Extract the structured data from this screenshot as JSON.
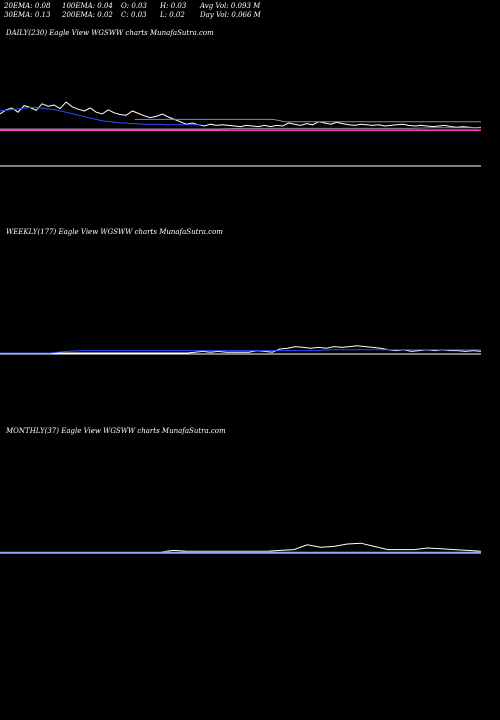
{
  "header": {
    "row1": [
      {
        "k": "20ema",
        "text": "20EMA: 0.08"
      },
      {
        "k": "100ema",
        "text": "100EMA: 0.04"
      },
      {
        "k": "open",
        "text": "O: 0.03"
      },
      {
        "k": "high",
        "text": "H: 0.03"
      },
      {
        "k": "avgvol",
        "text": "Avg Vol: 0.093  M"
      }
    ],
    "row2": [
      {
        "k": "30ema",
        "text": "30EMA: 0.13"
      },
      {
        "k": "200ema",
        "text": "200EMA: 0.02"
      },
      {
        "k": "close",
        "text": "C: 0.03"
      },
      {
        "k": "low",
        "text": "L: 0.02"
      },
      {
        "k": "dayvol",
        "text": "Day Vol: 0.066  M"
      }
    ]
  },
  "panels": {
    "daily": "DAILY(230) Eagle  View  WGSWW charts MunafaSutra.com",
    "weekly": "WEEKLY(177) Eagle  View  WGSWW charts MunafaSutra.com",
    "monthly": "MONTHLY(37) Eagle  View  WGSWW charts MunafaSutra.com"
  },
  "colors": {
    "bg": "#000000",
    "price": "#ffffff",
    "ema_blue": "#2b4bff",
    "ema_gray": "#8a8a8a",
    "ema_magenta": "#ff3bd6",
    "baseline": "#ffffff"
  },
  "chart_data": [
    {
      "type": "line",
      "series": [
        {
          "role": "price",
          "values": [
            0.085,
            0.092,
            0.095,
            0.088,
            0.099,
            0.096,
            0.091,
            0.102,
            0.098,
            0.1,
            0.094,
            0.105,
            0.097,
            0.093,
            0.09,
            0.095,
            0.088,
            0.085,
            0.092,
            0.087,
            0.084,
            0.083,
            0.09,
            0.086,
            0.082,
            0.079,
            0.081,
            0.085,
            0.08,
            0.076,
            0.072,
            0.068,
            0.07,
            0.067,
            0.065,
            0.068,
            0.066,
            0.067,
            0.066,
            0.065,
            0.064,
            0.066,
            0.065,
            0.064,
            0.066,
            0.064,
            0.066,
            0.065,
            0.07,
            0.068,
            0.066,
            0.069,
            0.067,
            0.072,
            0.07,
            0.068,
            0.071,
            0.069,
            0.067,
            0.066,
            0.068,
            0.067,
            0.066,
            0.067,
            0.065,
            0.066,
            0.067,
            0.068,
            0.066,
            0.065,
            0.066,
            0.065,
            0.064,
            0.065,
            0.066,
            0.064,
            0.063,
            0.064,
            0.063,
            0.062,
            0.063
          ]
        },
        {
          "role": "ema20",
          "values": [
            0.09,
            0.091,
            0.092,
            0.093,
            0.094,
            0.095,
            0.096,
            0.096,
            0.095,
            0.094,
            0.093,
            0.092,
            0.09,
            0.088,
            0.086,
            0.084,
            0.082,
            0.08,
            0.078,
            0.076,
            0.074,
            0.073,
            0.072,
            0.071,
            0.07,
            0.07,
            0.069,
            0.069,
            0.068,
            0.068,
            0.068,
            0.068,
            0.068,
            0.067,
            0.067,
            0.067,
            0.067,
            0.067,
            0.067,
            0.067,
            0.067
          ]
        },
        {
          "role": "ema30",
          "values": [
            0.076,
            0.076,
            0.076,
            0.076,
            0.076,
            0.076,
            0.076,
            0.076,
            0.076,
            0.076,
            0.076,
            0.076,
            0.076,
            0.072,
            0.072,
            0.072,
            0.072,
            0.072,
            0.072,
            0.072,
            0.072,
            0.072,
            0.072,
            0.072,
            0.072,
            0.072,
            0.072,
            0.072,
            0.072,
            0.072,
            0.072
          ]
        },
        {
          "role": "ema100",
          "values": [
            0.06,
            0.06,
            0.06,
            0.06,
            0.06,
            0.06,
            0.06,
            0.06,
            0.06,
            0.06,
            0.061,
            0.061,
            0.061,
            0.061,
            0.061,
            0.061,
            0.061,
            0.061,
            0.062,
            0.062,
            0.062
          ]
        },
        {
          "role": "ema200",
          "values": [
            0.058,
            0.058,
            0.058,
            0.058,
            0.058,
            0.058,
            0.058,
            0.058,
            0.058,
            0.058,
            0.058,
            0.058,
            0.058,
            0.058,
            0.058,
            0.058,
            0.058,
            0.058,
            0.058,
            0.058,
            0.058
          ]
        }
      ]
    },
    {
      "type": "line",
      "series": [
        {
          "role": "price",
          "values": [
            0,
            0,
            0,
            0,
            0,
            0,
            0,
            0,
            0,
            0,
            0,
            0,
            0,
            0,
            0,
            0,
            0,
            0,
            0,
            0.001,
            0.002,
            0.001,
            0.002,
            0.001,
            0.001,
            0.001,
            0.001,
            0.003,
            0.002,
            0.001,
            0.005,
            0.006,
            0.008,
            0.007,
            0.006,
            0.007,
            0.006,
            0.008,
            0.007,
            0.008,
            0.009,
            0.008,
            0.007,
            0.006,
            0.004,
            0.003,
            0.004,
            0.002,
            0.003,
            0.004,
            0.003,
            0.004,
            0.003,
            0.003,
            0.002,
            0.003,
            0.002
          ]
        },
        {
          "role": "ema_blue",
          "values": [
            0,
            0,
            0,
            0,
            0.002,
            0.003,
            0.003,
            0.003,
            0.003,
            0.003,
            0.003,
            0.003,
            0.003,
            0.003,
            0.003,
            0.003,
            0.003,
            0.003,
            0.003,
            0.003,
            0.004,
            0.004,
            0.004,
            0.004,
            0.004,
            0.004,
            0.004,
            0.004,
            0.004,
            0.004
          ]
        }
      ]
    },
    {
      "type": "line",
      "series": [
        {
          "role": "price",
          "values": [
            0,
            0,
            0,
            0,
            0,
            0,
            0,
            0,
            0,
            0,
            0,
            0,
            0,
            0.002,
            0.001,
            0.001,
            0.001,
            0.001,
            0.001,
            0.001,
            0.001,
            0.002,
            0.003,
            0.009,
            0.006,
            0.007,
            0.01,
            0.011,
            0.007,
            0.003,
            0.003,
            0.003,
            0.005,
            0.004,
            0.003,
            0.002,
            0.001
          ]
        },
        {
          "role": "ema_blue",
          "values": [
            0,
            0,
            0,
            0,
            0,
            0,
            0,
            0,
            0,
            0,
            0,
            0,
            0,
            0,
            0,
            0,
            0,
            0,
            0,
            0,
            0,
            0,
            0,
            0,
            0,
            0,
            0,
            0,
            0,
            0,
            0,
            0,
            0,
            0,
            0,
            0,
            0
          ]
        }
      ]
    }
  ]
}
